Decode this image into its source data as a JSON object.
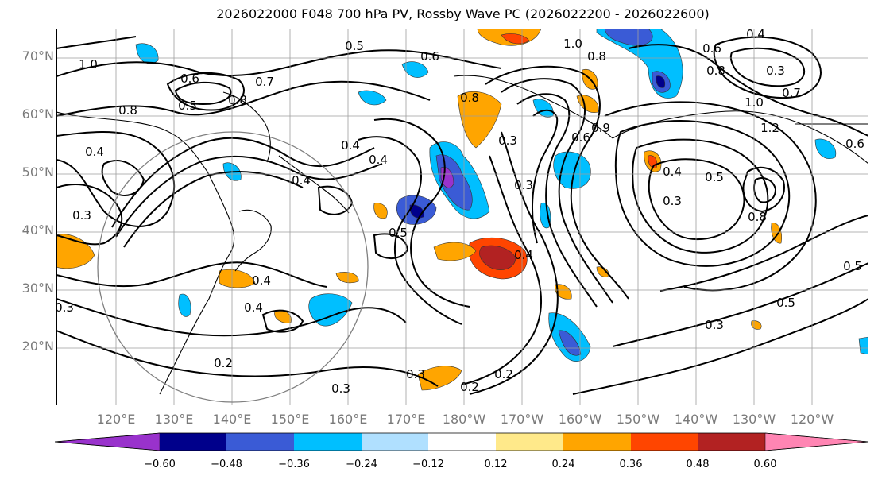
{
  "title": "2026022000 F048 700 hPa PV, Rossby Wave PC (2026022200 - 2026022600)",
  "lat_labels": [
    "70°N",
    "60°N",
    "50°N",
    "40°N",
    "30°N",
    "20°N"
  ],
  "lon_labels": [
    "120°E",
    "130°E",
    "140°E",
    "150°E",
    "160°E",
    "170°E",
    "180°W",
    "170°W",
    "160°W",
    "150°W",
    "140°W",
    "130°W",
    "120°W"
  ],
  "colorbar": {
    "colors": [
      "#9932cc",
      "#00008b",
      "#3a5bd6",
      "#00bfff",
      "#b0e0ff",
      "#ffffff",
      "#ffe98a",
      "#ffa500",
      "#ff4500",
      "#b22222",
      "#ff85b3"
    ],
    "ticks": [
      "−0.60",
      "−0.48",
      "−0.36",
      "−0.24",
      "−0.12",
      "0.12",
      "0.24",
      "0.36",
      "0.48",
      "0.60"
    ]
  },
  "contour_labels": [
    {
      "text": "1.0"
    },
    {
      "text": "0.5"
    },
    {
      "text": "0.6"
    },
    {
      "text": "0.6"
    },
    {
      "text": "0.7"
    },
    {
      "text": "0.8"
    },
    {
      "text": "0.8"
    },
    {
      "text": "0.5"
    },
    {
      "text": "0.4"
    },
    {
      "text": "0.3"
    },
    {
      "text": "0.4"
    },
    {
      "text": "0.4"
    },
    {
      "text": "0.4"
    },
    {
      "text": "0.4"
    },
    {
      "text": "0.3"
    },
    {
      "text": "0.3"
    },
    {
      "text": "0.2"
    },
    {
      "text": "0.2"
    },
    {
      "text": "0.3"
    },
    {
      "text": "0.2"
    },
    {
      "text": "0.3"
    },
    {
      "text": "0.4"
    },
    {
      "text": "0.8"
    },
    {
      "text": "1.0"
    },
    {
      "text": "0.8"
    },
    {
      "text": "0.6"
    },
    {
      "text": "0.8"
    },
    {
      "text": "0.4"
    },
    {
      "text": "0.3"
    },
    {
      "text": "0.7"
    },
    {
      "text": "1.0"
    },
    {
      "text": "1.2"
    },
    {
      "text": "0.6"
    },
    {
      "text": "0.5"
    },
    {
      "text": "0.4"
    },
    {
      "text": "0.3"
    },
    {
      "text": "0.8"
    },
    {
      "text": "0.5"
    },
    {
      "text": "0.5"
    },
    {
      "text": "0.3"
    },
    {
      "text": "0.6"
    },
    {
      "text": "0.5"
    },
    {
      "text": "0.4"
    },
    {
      "text": "0.9"
    },
    {
      "text": "0.3"
    }
  ]
}
